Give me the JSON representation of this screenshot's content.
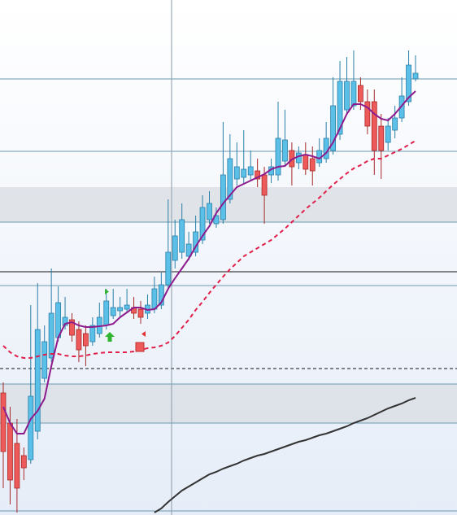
{
  "chart_data": {
    "type": "candlestick",
    "ylim": [
      0,
      633
    ],
    "up_color": "#5bc0e8",
    "up_edge": "#2a7fa8",
    "down_color": "#ee5a5a",
    "down_edge": "#a82828",
    "open": [
      150,
      113,
      88,
      73,
      68,
      103,
      168,
      193,
      218,
      233,
      240,
      228,
      223,
      213,
      223,
      233,
      245,
      251,
      253,
      255,
      253,
      248,
      253,
      258,
      283,
      313,
      323,
      318,
      323,
      338,
      363,
      358,
      363,
      388,
      413,
      415,
      418,
      423,
      418,
      418,
      418,
      435,
      448,
      433,
      443,
      438,
      433,
      438,
      448,
      468,
      498,
      503,
      528,
      508,
      508,
      478,
      458,
      473,
      488,
      508,
      536
    ],
    "high": [
      163,
      133,
      118,
      83,
      258,
      285,
      233,
      303,
      281,
      268,
      248,
      238,
      233,
      243,
      261,
      278,
      278,
      268,
      278,
      268,
      263,
      271,
      293,
      298,
      388,
      363,
      383,
      348,
      368,
      393,
      398,
      378,
      483,
      468,
      458,
      473,
      448,
      438,
      428,
      438,
      508,
      498,
      458,
      453,
      458,
      453,
      463,
      483,
      538,
      558,
      563,
      571,
      538,
      523,
      523,
      493,
      488,
      503,
      538,
      571,
      565
    ],
    "low": [
      33,
      13,
      3,
      43,
      63,
      93,
      163,
      188,
      213,
      228,
      213,
      188,
      183,
      208,
      218,
      228,
      241,
      243,
      248,
      241,
      235,
      241,
      248,
      253,
      278,
      303,
      315,
      313,
      318,
      333,
      358,
      353,
      358,
      383,
      405,
      408,
      411,
      403,
      358,
      408,
      411,
      428,
      405,
      425,
      418,
      405,
      428,
      433,
      443,
      461,
      493,
      498,
      498,
      468,
      418,
      413,
      448,
      463,
      483,
      503,
      533
    ],
    "close": [
      78,
      43,
      33,
      58,
      146,
      228,
      213,
      248,
      261,
      243,
      221,
      203,
      208,
      233,
      243,
      263,
      255,
      255,
      258,
      248,
      243,
      258,
      278,
      283,
      323,
      343,
      363,
      333,
      348,
      378,
      383,
      368,
      418,
      438,
      428,
      425,
      428,
      413,
      393,
      428,
      463,
      461,
      428,
      445,
      425,
      423,
      448,
      463,
      503,
      533,
      533,
      533,
      508,
      478,
      448,
      448,
      478,
      488,
      515,
      553,
      543
    ],
    "series": [
      {
        "color": "#8e1b8e",
        "dash": false,
        "values": [
          133,
          113,
          100,
          100,
          118,
          128,
          143,
          183,
          218,
          235,
          237,
          233,
          231,
          231,
          232,
          233,
          235,
          243,
          249,
          255,
          255,
          252,
          253,
          261,
          278,
          291,
          303,
          315,
          330,
          343,
          355,
          371,
          383,
          393,
          403,
          407,
          411,
          415,
          419,
          425,
          428,
          429,
          437,
          441,
          443,
          441,
          438,
          445,
          458,
          475,
          493,
          505,
          505,
          501,
          493,
          487,
          485,
          493,
          503,
          513,
          521
        ]
      },
      {
        "color": "#e0204a",
        "dash": true,
        "values": [
          208,
          200,
          195,
          193,
          193,
          195,
          197,
          198,
          198,
          196,
          195,
          195,
          196,
          198,
          199,
          200,
          200,
          200,
          200,
          201,
          203,
          205,
          206,
          208,
          212,
          220,
          230,
          240,
          252,
          262,
          273,
          283,
          293,
          302,
          310,
          318,
          323,
          328,
          333,
          338,
          345,
          352,
          360,
          368,
          376,
          383,
          390,
          398,
          406,
          413,
          420,
          426,
          430,
          435,
          438,
          438,
          442,
          446,
          450,
          455,
          460
        ]
      },
      {
        "color": "#333333",
        "dash": false,
        "values": [
          null,
          null,
          null,
          null,
          null,
          null,
          null,
          null,
          null,
          null,
          null,
          null,
          null,
          null,
          null,
          null,
          null,
          null,
          null,
          null,
          null,
          null,
          3,
          8,
          16,
          23,
          30,
          35,
          40,
          45,
          50,
          53,
          57,
          60,
          63,
          67,
          70,
          73,
          75,
          78,
          81,
          84,
          87,
          90,
          92,
          95,
          98,
          100,
          103,
          106,
          109,
          113,
          116,
          119,
          123,
          127,
          131,
          134,
          137,
          141,
          144
        ]
      }
    ],
    "bands": [
      [
        360,
        403
      ],
      [
        113,
        161
      ]
    ],
    "hlines": [
      536,
      447,
      360,
      282,
      161,
      113,
      5
    ],
    "hline_color": "#6a9ab0",
    "level_line": 299,
    "dashed_level": 180
  }
}
